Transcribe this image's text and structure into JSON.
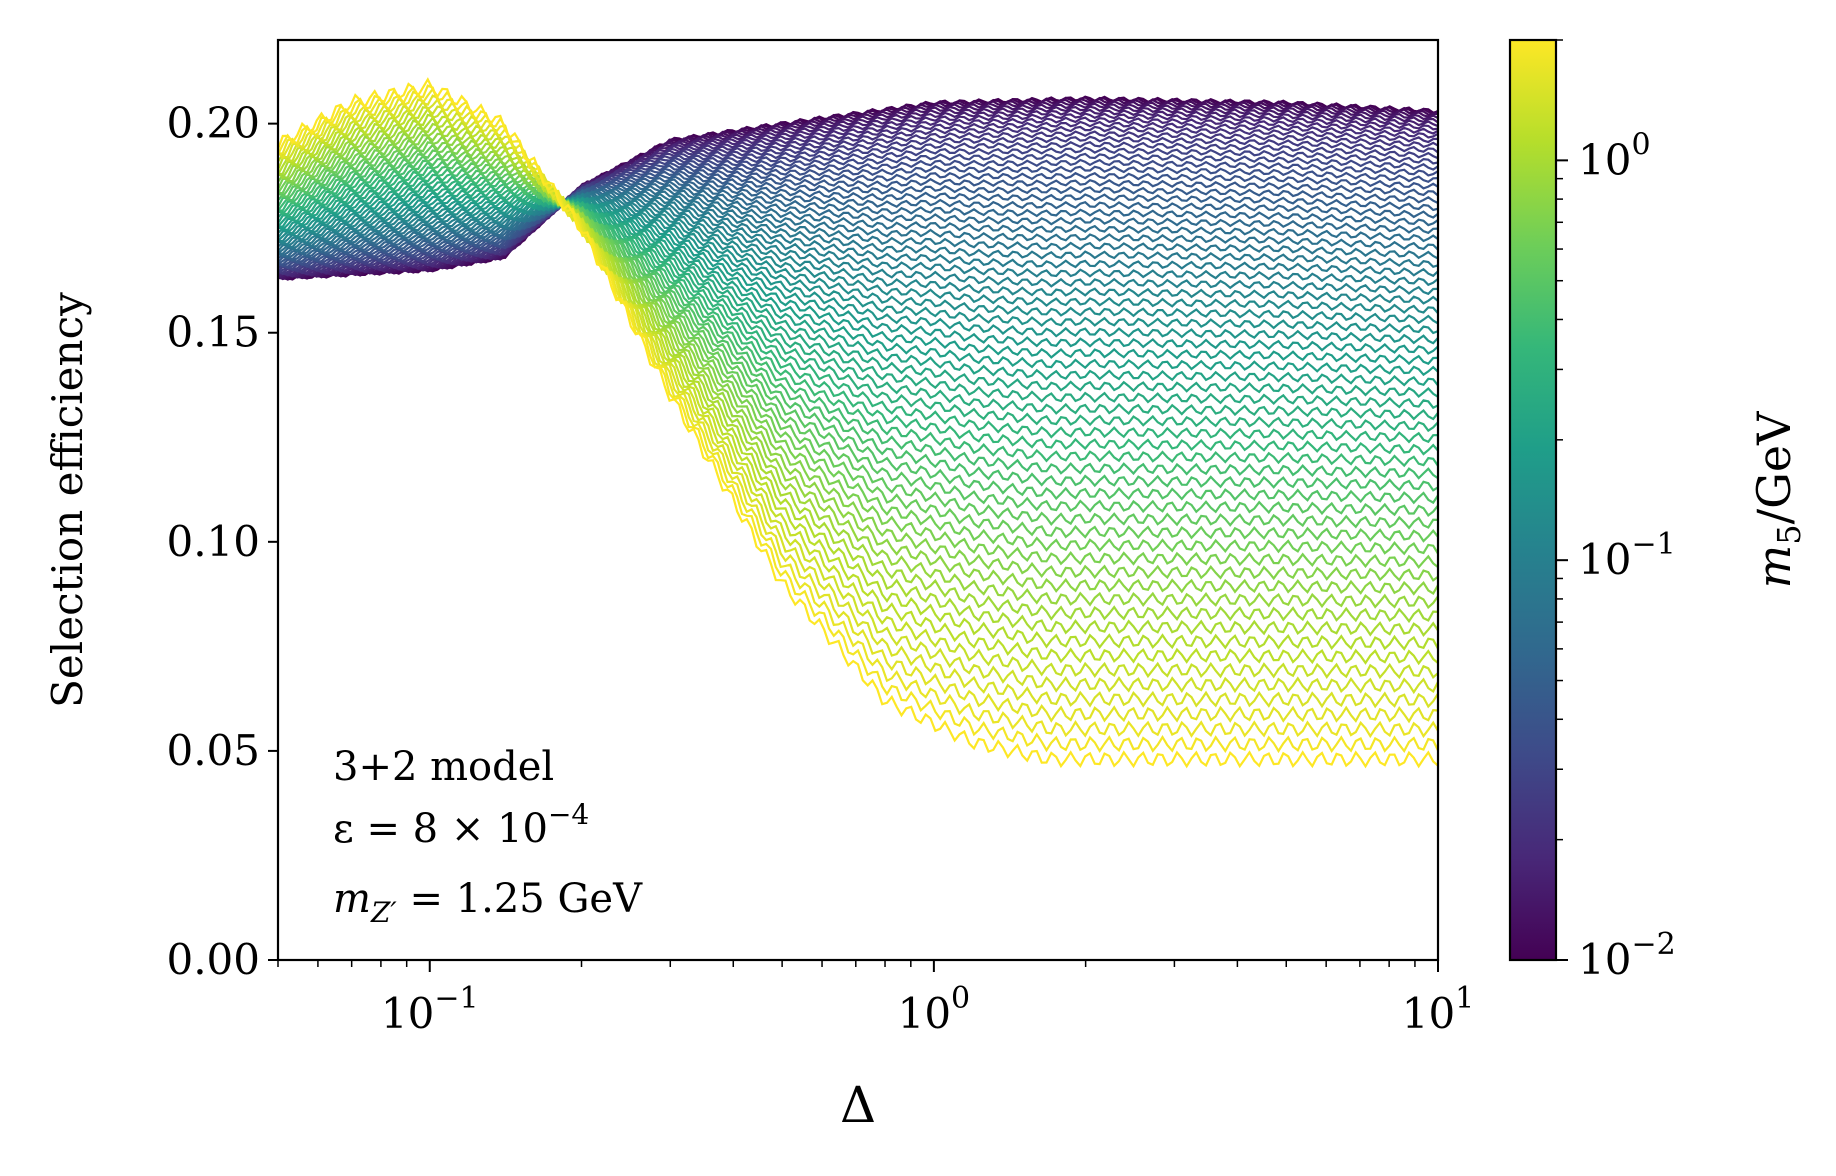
{
  "chart_data": {
    "type": "line",
    "xscale": "log",
    "xlim": [
      0.05,
      10
    ],
    "ylim": [
      0.0,
      0.22
    ],
    "xlabel": "Δ",
    "ylabel": "Selection efficiency",
    "y_ticks": [
      {
        "value": 0.0,
        "label": "0.00"
      },
      {
        "value": 0.05,
        "label": "0.05"
      },
      {
        "value": 0.1,
        "label": "0.10"
      },
      {
        "value": 0.15,
        "label": "0.15"
      },
      {
        "value": 0.2,
        "label": "0.20"
      }
    ],
    "x_ticks": [
      {
        "value": 0.1,
        "base": "10",
        "exp": "−1"
      },
      {
        "value": 1,
        "base": "10",
        "exp": "0"
      },
      {
        "value": 10,
        "base": "10",
        "exp": "1"
      }
    ],
    "annotation": {
      "line1": "3+2 model",
      "line2_lhs": "ε = 8 × 10",
      "line2_exp": "−4",
      "line3_lhs": "m",
      "line3_sub": "Z′",
      "line3_rhs": " = 1.25 GeV"
    },
    "colorbar": {
      "label_m": "m",
      "label_sub": "5",
      "label_rest": "/GeV",
      "scale": "log",
      "range": [
        0.01,
        2.0
      ],
      "ticks": [
        {
          "value": 0.01,
          "base": "10",
          "exp": "−2"
        },
        {
          "value": 0.1,
          "base": "10",
          "exp": "−1"
        },
        {
          "value": 1,
          "base": "10",
          "exp": "0"
        }
      ],
      "colormap": "viridis",
      "colormap_stops": [
        "#440154",
        "#482878",
        "#3e4a89",
        "#31688e",
        "#26828e",
        "#1f9e89",
        "#35b779",
        "#6ece58",
        "#b5de2b",
        "#fde725"
      ]
    },
    "series_family": {
      "description": "one efficiency curve per m5 value",
      "m5_min": 0.01,
      "m5_max": 2.0,
      "count": 70,
      "low_mass_curve": {
        "x": [
          0.05,
          0.07,
          0.1,
          0.14,
          0.2,
          0.3,
          0.5,
          1.0,
          2.0,
          5.0,
          10.0
        ],
        "y": [
          0.163,
          0.164,
          0.165,
          0.168,
          0.185,
          0.196,
          0.2,
          0.205,
          0.206,
          0.205,
          0.203
        ]
      },
      "high_mass_curve": {
        "x": [
          0.05,
          0.07,
          0.1,
          0.14,
          0.2,
          0.3,
          0.5,
          0.8,
          1.2,
          1.7,
          3.0,
          10.0
        ],
        "y": [
          0.195,
          0.205,
          0.209,
          0.2,
          0.175,
          0.135,
          0.09,
          0.062,
          0.052,
          0.048,
          0.048,
          0.048
        ]
      }
    }
  }
}
